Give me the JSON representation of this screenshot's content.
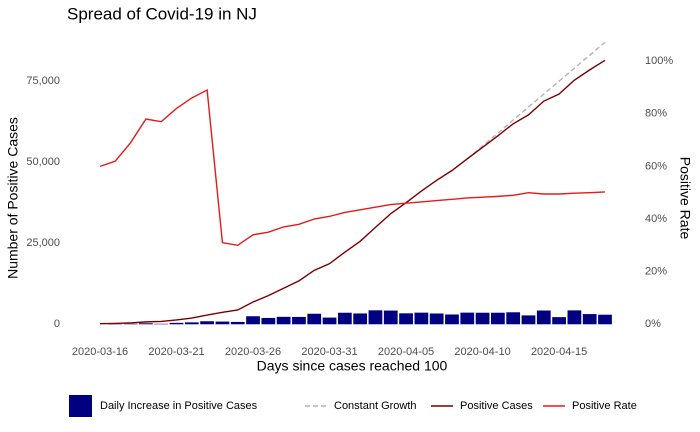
{
  "chart_data": {
    "type": "combo",
    "title": "Spread of Covid-19 in NJ",
    "x_label": "Days since cases reached 100",
    "y_label": "Number of Positive Cases",
    "y2_label": "Positive Rate",
    "x": [
      "2020-03-16",
      "2020-03-17",
      "2020-03-18",
      "2020-03-19",
      "2020-03-20",
      "2020-03-21",
      "2020-03-22",
      "2020-03-23",
      "2020-03-24",
      "2020-03-25",
      "2020-03-26",
      "2020-03-27",
      "2020-03-28",
      "2020-03-29",
      "2020-03-30",
      "2020-03-31",
      "2020-04-01",
      "2020-04-02",
      "2020-04-03",
      "2020-04-04",
      "2020-04-05",
      "2020-04-06",
      "2020-04-07",
      "2020-04-08",
      "2020-04-09",
      "2020-04-10",
      "2020-04-11",
      "2020-04-12",
      "2020-04-13",
      "2020-04-14",
      "2020-04-15",
      "2020-04-16",
      "2020-04-17",
      "2020-04-18"
    ],
    "xticks": [
      "2020-03-16",
      "2020-03-21",
      "2020-03-26",
      "2020-03-31",
      "2020-04-05",
      "2020-04-10",
      "2020-04-15"
    ],
    "ylim": [
      -3000,
      88000
    ],
    "yticks": [
      0,
      {
        "value": 25000,
        "label": "25,000"
      },
      {
        "value": 50000,
        "label": "50,000"
      },
      {
        "value": 75000,
        "label": "75,000"
      }
    ],
    "y2lim": [
      -3.7,
      108.4
    ],
    "y2ticks": [
      {
        "value": 0,
        "label": "0%"
      },
      {
        "value": 20,
        "label": "20%"
      },
      {
        "value": 40,
        "label": "40%"
      },
      {
        "value": 60,
        "label": "60%"
      },
      {
        "value": 80,
        "label": "80%"
      },
      {
        "value": 100,
        "label": "100%"
      }
    ],
    "grid": false,
    "series": [
      {
        "name": "Daily Increase in Positive Cases",
        "type": "bar",
        "color": "#000080",
        "values": [
          null,
          89,
          160,
          315,
          148,
          437,
          587,
          930,
          831,
          727,
          2474,
          1949,
          2299,
          2262,
          3250,
          2060,
          3559,
          3335,
          4305,
          4229,
          3381,
          3585,
          3326,
          3021,
          3590,
          3561,
          3563,
          3699,
          2734,
          4240,
          2206,
          4287,
          3150,
          2953
        ]
      },
      {
        "name": "Constant Growth",
        "type": "line",
        "dashed": true,
        "color": "#b3b3b3",
        "values": [
          null,
          null,
          null,
          null,
          null,
          null,
          null,
          null,
          null,
          null,
          null,
          null,
          null,
          null,
          null,
          null,
          null,
          null,
          null,
          null,
          null,
          null,
          null,
          null,
          51000,
          55000,
          59000,
          63000,
          67000,
          71000,
          75000,
          79000,
          83000,
          87000
        ]
      },
      {
        "name": "Positive Cases",
        "type": "line",
        "color": "#7a0000",
        "values": [
          178,
          267,
          427,
          742,
          890,
          1327,
          1914,
          2844,
          3675,
          4402,
          6876,
          8825,
          11124,
          13386,
          16636,
          18696,
          22255,
          25590,
          29895,
          34124,
          37505,
          41090,
          44416,
          47437,
          51027,
          54588,
          58151,
          61850,
          64584,
          68824,
          71030,
          75317,
          78467,
          81420
        ]
      },
      {
        "name": "Positive Rate",
        "type": "line",
        "axis": "y2",
        "color": "#e41a1c",
        "values": [
          60,
          62,
          69,
          78,
          77,
          82,
          86,
          89,
          31,
          30,
          34,
          35,
          37,
          38,
          40,
          41,
          42.5,
          43.5,
          44.5,
          45.5,
          46,
          46.5,
          47,
          47.5,
          48,
          48.3,
          48.6,
          49,
          50,
          49.5,
          49.5,
          49.8,
          50,
          50.3
        ]
      }
    ]
  }
}
